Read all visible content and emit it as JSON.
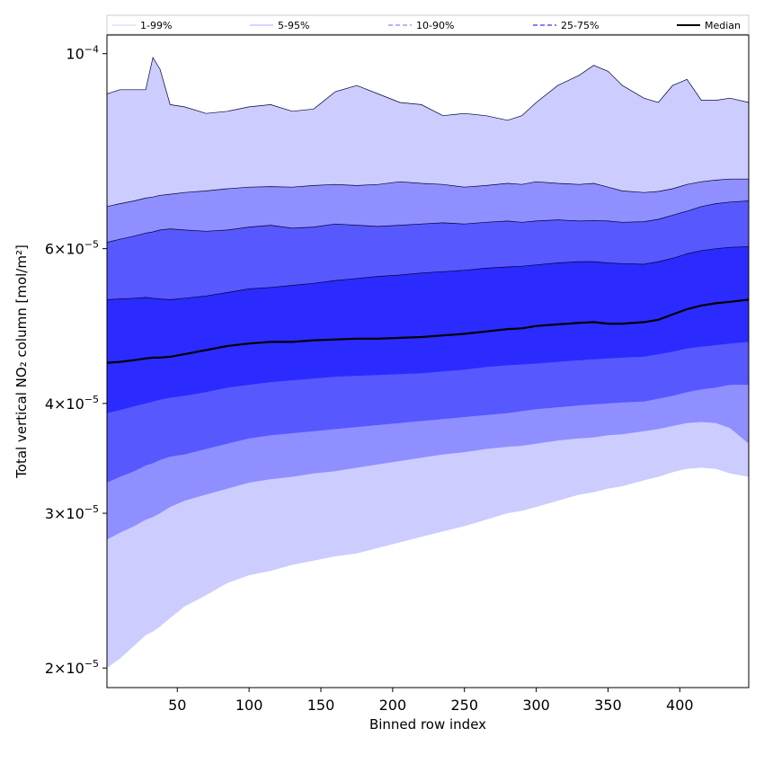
{
  "chart_data": {
    "type": "area",
    "xlabel": "Binned row index",
    "ylabel": "Total vertical NO₂ column [mol/m²]",
    "xlim": [
      1,
      448
    ],
    "ylim": [
      1.9e-05,
      0.000105
    ],
    "yscale": "log",
    "grid": false,
    "legend_position": "top",
    "xticks": [
      {
        "value": 50,
        "label": "50"
      },
      {
        "value": 100,
        "label": "100"
      },
      {
        "value": 150,
        "label": "150"
      },
      {
        "value": 200,
        "label": "200"
      },
      {
        "value": 250,
        "label": "250"
      },
      {
        "value": 300,
        "label": "300"
      },
      {
        "value": 350,
        "label": "350"
      },
      {
        "value": 400,
        "label": "400"
      }
    ],
    "yticks": [
      {
        "value": 2e-05,
        "mantissa": "2",
        "exp": "−5"
      },
      {
        "value": 3e-05,
        "mantissa": "3",
        "exp": "−5"
      },
      {
        "value": 4e-05,
        "mantissa": "4",
        "exp": "−5"
      },
      {
        "value": 6e-05,
        "mantissa": "6",
        "exp": "−5"
      },
      {
        "value": 0.0001,
        "mantissa": "",
        "exp": "−4"
      }
    ],
    "x": [
      1,
      10,
      20,
      28,
      33,
      38,
      45,
      55,
      70,
      85,
      100,
      115,
      130,
      145,
      160,
      175,
      190,
      205,
      220,
      235,
      250,
      265,
      280,
      290,
      300,
      315,
      330,
      340,
      350,
      360,
      375,
      385,
      395,
      405,
      415,
      425,
      435,
      448
    ],
    "bands": [
      {
        "name": "1-99%",
        "color": "#ccccff",
        "lower": [
          2e-05,
          2.05e-05,
          2.12e-05,
          2.18e-05,
          2.2e-05,
          2.23e-05,
          2.28e-05,
          2.35e-05,
          2.42e-05,
          2.5e-05,
          2.55e-05,
          2.58e-05,
          2.62e-05,
          2.65e-05,
          2.68e-05,
          2.7e-05,
          2.74e-05,
          2.78e-05,
          2.82e-05,
          2.86e-05,
          2.9e-05,
          2.95e-05,
          3e-05,
          3.02e-05,
          3.05e-05,
          3.1e-05,
          3.15e-05,
          3.17e-05,
          3.2e-05,
          3.22e-05,
          3.27e-05,
          3.3e-05,
          3.34e-05,
          3.37e-05,
          3.38e-05,
          3.37e-05,
          3.33e-05,
          3.3e-05
        ],
        "upper": [
          9e-05,
          9.1e-05,
          9.1e-05,
          9.1e-05,
          9.9e-05,
          9.6e-05,
          8.75e-05,
          8.7e-05,
          8.55e-05,
          8.6e-05,
          8.7e-05,
          8.75e-05,
          8.6e-05,
          8.65e-05,
          9.05e-05,
          9.2e-05,
          9e-05,
          8.8e-05,
          8.75e-05,
          8.5e-05,
          8.55e-05,
          8.5e-05,
          8.4e-05,
          8.5e-05,
          8.8e-05,
          9.2e-05,
          9.45e-05,
          9.7e-05,
          9.55e-05,
          9.2e-05,
          8.9e-05,
          8.8e-05,
          9.2e-05,
          9.35e-05,
          8.85e-05,
          8.85e-05,
          8.9e-05,
          8.8e-05
        ]
      },
      {
        "name": "5-95%",
        "color": "#8f8fff",
        "lower": [
          2.8e-05,
          2.85e-05,
          2.9e-05,
          2.95e-05,
          2.97e-05,
          3e-05,
          3.05e-05,
          3.1e-05,
          3.15e-05,
          3.2e-05,
          3.25e-05,
          3.28e-05,
          3.3e-05,
          3.33e-05,
          3.35e-05,
          3.38e-05,
          3.41e-05,
          3.44e-05,
          3.47e-05,
          3.5e-05,
          3.52e-05,
          3.55e-05,
          3.57e-05,
          3.58e-05,
          3.6e-05,
          3.63e-05,
          3.65e-05,
          3.66e-05,
          3.68e-05,
          3.69e-05,
          3.72e-05,
          3.74e-05,
          3.77e-05,
          3.8e-05,
          3.81e-05,
          3.8e-05,
          3.75e-05,
          3.6e-05
        ],
        "upper": [
          6.7e-05,
          6.75e-05,
          6.8e-05,
          6.85e-05,
          6.87e-05,
          6.9e-05,
          6.92e-05,
          6.95e-05,
          6.98e-05,
          7.02e-05,
          7.05e-05,
          7.06e-05,
          7.05e-05,
          7.08e-05,
          7.1e-05,
          7.08e-05,
          7.1e-05,
          7.15e-05,
          7.12e-05,
          7.1e-05,
          7.05e-05,
          7.08e-05,
          7.12e-05,
          7.1e-05,
          7.15e-05,
          7.12e-05,
          7.1e-05,
          7.12e-05,
          7.05e-05,
          6.98e-05,
          6.95e-05,
          6.97e-05,
          7.02e-05,
          7.1e-05,
          7.15e-05,
          7.18e-05,
          7.2e-05,
          7.2e-05
        ]
      },
      {
        "name": "10-90%",
        "color": "#5858ff",
        "lower": [
          3.25e-05,
          3.3e-05,
          3.35e-05,
          3.4e-05,
          3.42e-05,
          3.45e-05,
          3.48e-05,
          3.5e-05,
          3.55e-05,
          3.6e-05,
          3.65e-05,
          3.68e-05,
          3.7e-05,
          3.72e-05,
          3.74e-05,
          3.76e-05,
          3.78e-05,
          3.8e-05,
          3.82e-05,
          3.84e-05,
          3.86e-05,
          3.88e-05,
          3.9e-05,
          3.92e-05,
          3.94e-05,
          3.96e-05,
          3.98e-05,
          3.99e-05,
          4e-05,
          4.01e-05,
          4.02e-05,
          4.05e-05,
          4.08e-05,
          4.12e-05,
          4.15e-05,
          4.17e-05,
          4.2e-05,
          4.2e-05
        ],
        "upper": [
          6.1e-05,
          6.15e-05,
          6.2e-05,
          6.25e-05,
          6.27e-05,
          6.3e-05,
          6.32e-05,
          6.3e-05,
          6.28e-05,
          6.3e-05,
          6.35e-05,
          6.38e-05,
          6.33e-05,
          6.35e-05,
          6.4e-05,
          6.38e-05,
          6.36e-05,
          6.38e-05,
          6.4e-05,
          6.42e-05,
          6.4e-05,
          6.43e-05,
          6.45e-05,
          6.43e-05,
          6.45e-05,
          6.47e-05,
          6.45e-05,
          6.46e-05,
          6.45e-05,
          6.43e-05,
          6.44e-05,
          6.48e-05,
          6.55e-05,
          6.62e-05,
          6.7e-05,
          6.75e-05,
          6.78e-05,
          6.8e-05
        ]
      },
      {
        "name": "25-75%",
        "color": "#2b2bff",
        "lower": [
          3.9e-05,
          3.93e-05,
          3.97e-05,
          4e-05,
          4.02e-05,
          4.04e-05,
          4.06e-05,
          4.08e-05,
          4.12e-05,
          4.17e-05,
          4.2e-05,
          4.23e-05,
          4.25e-05,
          4.27e-05,
          4.29e-05,
          4.3e-05,
          4.31e-05,
          4.32e-05,
          4.33e-05,
          4.35e-05,
          4.37e-05,
          4.4e-05,
          4.42e-05,
          4.43e-05,
          4.44e-05,
          4.46e-05,
          4.48e-05,
          4.49e-05,
          4.5e-05,
          4.51e-05,
          4.52e-05,
          4.55e-05,
          4.58e-05,
          4.62e-05,
          4.64e-05,
          4.66e-05,
          4.68e-05,
          4.7e-05
        ],
        "upper": [
          5.25e-05,
          5.26e-05,
          5.27e-05,
          5.28e-05,
          5.27e-05,
          5.26e-05,
          5.25e-05,
          5.27e-05,
          5.3e-05,
          5.35e-05,
          5.4e-05,
          5.42e-05,
          5.45e-05,
          5.48e-05,
          5.52e-05,
          5.55e-05,
          5.58e-05,
          5.6e-05,
          5.63e-05,
          5.65e-05,
          5.67e-05,
          5.7e-05,
          5.72e-05,
          5.73e-05,
          5.75e-05,
          5.78e-05,
          5.8e-05,
          5.8e-05,
          5.78e-05,
          5.77e-05,
          5.76e-05,
          5.8e-05,
          5.85e-05,
          5.92e-05,
          5.97e-05,
          6e-05,
          6.02e-05,
          6.03e-05
        ]
      }
    ],
    "median": {
      "name": "Median",
      "color": "#000000",
      "values": [
        4.45e-05,
        4.46e-05,
        4.48e-05,
        4.5e-05,
        4.51e-05,
        4.51e-05,
        4.52e-05,
        4.55e-05,
        4.6e-05,
        4.65e-05,
        4.68e-05,
        4.7e-05,
        4.7e-05,
        4.72e-05,
        4.73e-05,
        4.74e-05,
        4.74e-05,
        4.75e-05,
        4.76e-05,
        4.78e-05,
        4.8e-05,
        4.83e-05,
        4.86e-05,
        4.87e-05,
        4.9e-05,
        4.92e-05,
        4.94e-05,
        4.95e-05,
        4.93e-05,
        4.93e-05,
        4.95e-05,
        4.98e-05,
        5.05e-05,
        5.12e-05,
        5.17e-05,
        5.2e-05,
        5.22e-05,
        5.25e-05
      ]
    },
    "legend": [
      {
        "label": "1-99%",
        "color": "#ccccff",
        "dash": "",
        "width": 1
      },
      {
        "label": "5-95%",
        "color": "#8f8fff",
        "dash": "",
        "width": 0.8
      },
      {
        "label": "10-90%",
        "color": "#8888ff",
        "dash": "5,3",
        "width": 1.2
      },
      {
        "label": "25-75%",
        "color": "#3333ff",
        "dash": "5,3",
        "width": 1.2
      },
      {
        "label": "Median",
        "color": "#000000",
        "dash": "",
        "width": 2
      }
    ]
  }
}
